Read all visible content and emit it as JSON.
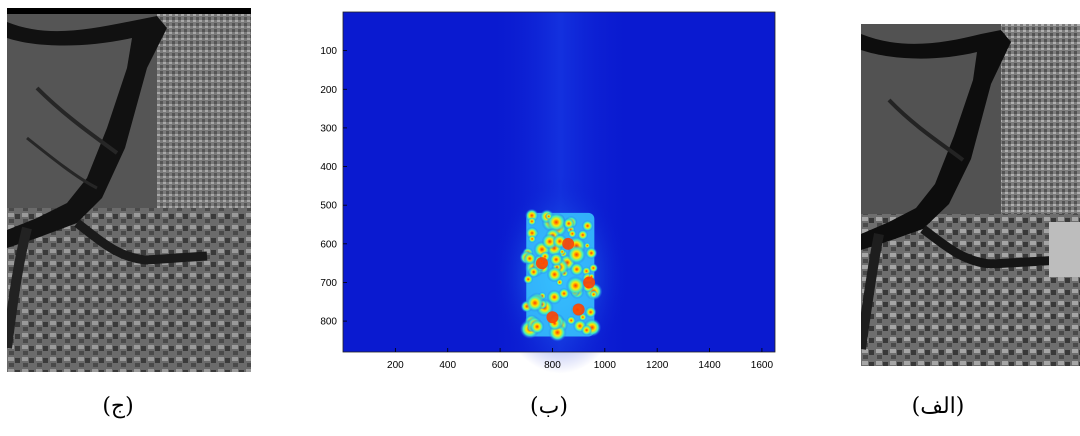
{
  "figure": {
    "captions": {
      "left": "(ج)",
      "middle": "(ب)",
      "right": "(الف)"
    }
  },
  "chart_data": {
    "type": "heatmap",
    "title": "",
    "xlabel": "",
    "ylabel": "",
    "x_ticks": [
      200,
      400,
      600,
      800,
      1000,
      1200,
      1400,
      1600
    ],
    "y_ticks": [
      100,
      200,
      300,
      400,
      500,
      600,
      700,
      800
    ],
    "xlim": [
      0,
      1650
    ],
    "ylim": [
      880,
      0
    ],
    "colormap": "jet",
    "background_color": "#0a1ad0",
    "hotspot_region": {
      "x": [
        700,
        960
      ],
      "y": [
        520,
        840
      ]
    },
    "grid": false
  }
}
